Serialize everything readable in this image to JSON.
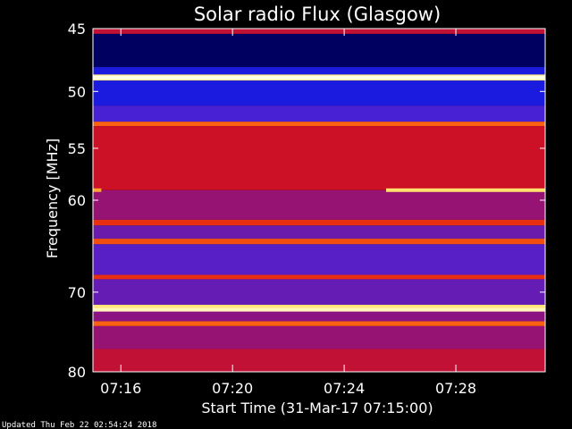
{
  "chart_data": {
    "type": "heatmap",
    "title": "Solar radio Flux (Glasgow)",
    "xlabel": "Start Time (31-Mar-17 07:15:00)",
    "ylabel": "Frequency [MHz]",
    "x_tick_labels": [
      "07:16",
      "07:20",
      "07:24",
      "07:28"
    ],
    "x_tick_minutes": [
      16,
      20,
      24,
      28
    ],
    "xlim_minutes": [
      15,
      31.2
    ],
    "y_tick_labels": [
      "45",
      "50",
      "55",
      "60",
      "70",
      "80"
    ],
    "y_tick_values": [
      45,
      50,
      55,
      60,
      70,
      80
    ],
    "ylim": [
      45,
      80
    ],
    "y_scale": "log",
    "colormap": "black-blue-red-yellow-white",
    "intensity_bands": [
      {
        "from": 45,
        "to": 45.4,
        "level": 0.6
      },
      {
        "from": 45.4,
        "to": 48.0,
        "level": 0.12
      },
      {
        "from": 48.0,
        "to": 48.6,
        "level": 0.3
      },
      {
        "from": 48.6,
        "to": 49.1,
        "level": 0.95
      },
      {
        "from": 49.1,
        "to": 51.2,
        "level": 0.3
      },
      {
        "from": 51.2,
        "to": 52.6,
        "level": 0.4
      },
      {
        "from": 52.6,
        "to": 53.0,
        "level": 0.78
      },
      {
        "from": 53.0,
        "to": 59.0,
        "level": 0.62
      },
      {
        "from": 59.0,
        "to": 62.0,
        "level": 0.52
      },
      {
        "from": 62.0,
        "to": 62.6,
        "level": 0.7
      },
      {
        "from": 62.6,
        "to": 64.0,
        "level": 0.45
      },
      {
        "from": 64.0,
        "to": 64.6,
        "level": 0.75
      },
      {
        "from": 64.6,
        "to": 68.0,
        "level": 0.42
      },
      {
        "from": 68.0,
        "to": 68.5,
        "level": 0.7
      },
      {
        "from": 68.5,
        "to": 71.5,
        "level": 0.44
      },
      {
        "from": 71.5,
        "to": 72.1,
        "level": 0.93
      },
      {
        "from": 72.1,
        "to": 73.5,
        "level": 0.5
      },
      {
        "from": 73.5,
        "to": 74.1,
        "level": 0.78
      },
      {
        "from": 74.1,
        "to": 77.0,
        "level": 0.52
      },
      {
        "from": 77.0,
        "to": 80.0,
        "level": 0.6
      }
    ],
    "emission_lines": [
      {
        "freq": 48.85,
        "level": 1.0,
        "from_min": 15,
        "to_min": 31.2
      },
      {
        "freq": 72.1,
        "level": 0.97,
        "from_min": 15,
        "to_min": 31.2
      },
      {
        "freq": 59.0,
        "level": 0.92,
        "from_min": 25.5,
        "to_min": 31.2
      },
      {
        "freq": 59.0,
        "level": 0.85,
        "from_min": 15,
        "to_min": 15.3
      }
    ]
  },
  "footer": {
    "updated": "Updated Thu Feb 22 02:54:24 2018"
  },
  "colors": {
    "background": "#000000",
    "text": "#ffffff"
  }
}
